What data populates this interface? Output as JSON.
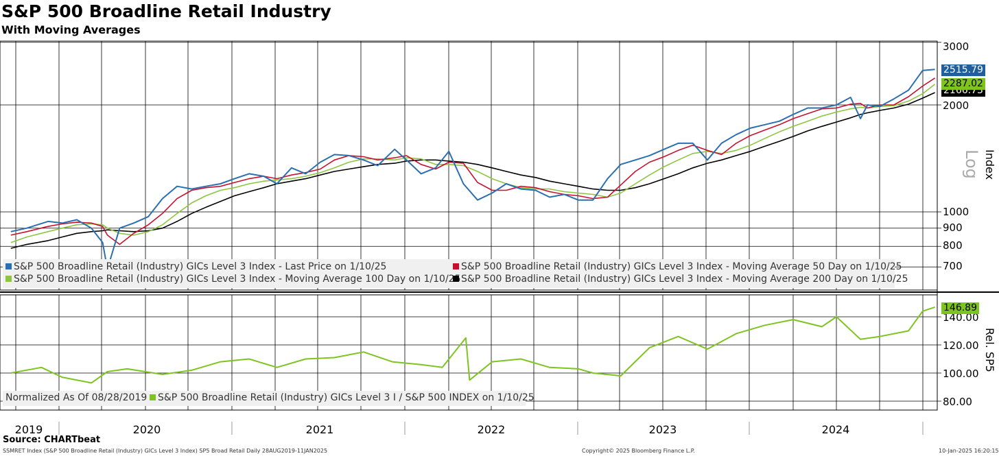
{
  "header": {
    "title": "S&P 500 Broadline Retail Industry",
    "subtitle": "With Moving Averages"
  },
  "chart_data": [
    {
      "type": "line",
      "y_scale": "log",
      "ylabel": "Index",
      "scale_label": "Log",
      "ylim": [
        630,
        3000
      ],
      "y_ticks": [
        700,
        800,
        900,
        1000,
        2000,
        3000
      ],
      "x_tick_labels": [
        "2019",
        "2020",
        "2021",
        "2022",
        "2023",
        "2024"
      ],
      "x": [
        "2019-08-28",
        "2019-10-01",
        "2019-11-15",
        "2019-12-15",
        "2020-01-15",
        "2020-02-15",
        "2020-03-10",
        "2020-03-20",
        "2020-04-15",
        "2020-05-15",
        "2020-06-15",
        "2020-07-15",
        "2020-08-15",
        "2020-09-15",
        "2020-10-15",
        "2020-11-15",
        "2020-12-15",
        "2021-01-15",
        "2021-02-15",
        "2021-03-15",
        "2021-04-15",
        "2021-05-15",
        "2021-06-15",
        "2021-07-15",
        "2021-08-15",
        "2021-09-15",
        "2021-10-15",
        "2021-11-20",
        "2021-12-15",
        "2022-01-15",
        "2022-02-15",
        "2022-03-15",
        "2022-04-15",
        "2022-05-15",
        "2022-06-15",
        "2022-07-15",
        "2022-08-15",
        "2022-09-15",
        "2022-10-15",
        "2022-11-15",
        "2022-12-15",
        "2023-01-15",
        "2023-02-15",
        "2023-03-15",
        "2023-04-15",
        "2023-05-15",
        "2023-06-15",
        "2023-07-15",
        "2023-08-15",
        "2023-09-15",
        "2023-10-15",
        "2023-11-15",
        "2023-12-15",
        "2024-01-15",
        "2024-02-15",
        "2024-03-15",
        "2024-04-15",
        "2024-05-15",
        "2024-06-15",
        "2024-07-15",
        "2024-08-05",
        "2024-08-20",
        "2024-09-15",
        "2024-10-15",
        "2024-11-15",
        "2024-12-15",
        "2025-01-10"
      ],
      "series": [
        {
          "name": "S&P 500 Broadline Retail (Industry) GICs Level 3 Index - Last Price on 1/10/25",
          "color": "#2a6fb0",
          "values": [
            880,
            900,
            940,
            930,
            950,
            900,
            820,
            690,
            900,
            930,
            970,
            1090,
            1180,
            1160,
            1180,
            1200,
            1240,
            1280,
            1260,
            1200,
            1330,
            1280,
            1380,
            1450,
            1440,
            1400,
            1350,
            1500,
            1400,
            1280,
            1330,
            1480,
            1200,
            1080,
            1130,
            1200,
            1160,
            1150,
            1100,
            1120,
            1080,
            1080,
            1240,
            1360,
            1400,
            1440,
            1500,
            1560,
            1560,
            1400,
            1560,
            1650,
            1720,
            1760,
            1800,
            1880,
            1960,
            1960,
            2000,
            2100,
            1830,
            2000,
            1980,
            2080,
            2200,
            2500,
            2516
          ]
        },
        {
          "name": "S&P 500 Broadline Retail (Industry) GICs Level 3 Index - Moving Average 50 Day on 1/10/25",
          "color": "#c8102e",
          "values": [
            860,
            880,
            910,
            925,
            935,
            930,
            910,
            860,
            810,
            870,
            920,
            990,
            1090,
            1150,
            1170,
            1180,
            1210,
            1240,
            1260,
            1240,
            1270,
            1290,
            1320,
            1400,
            1440,
            1430,
            1400,
            1420,
            1440,
            1360,
            1320,
            1380,
            1370,
            1210,
            1150,
            1150,
            1180,
            1170,
            1140,
            1120,
            1110,
            1090,
            1100,
            1190,
            1300,
            1380,
            1430,
            1490,
            1540,
            1490,
            1450,
            1560,
            1640,
            1700,
            1760,
            1830,
            1890,
            1950,
            1960,
            2010,
            2020,
            1960,
            2000,
            2000,
            2110,
            2260,
            2380
          ]
        },
        {
          "name": "S&P 500 Broadline Retail (Industry) GICs Level 3 Index - Moving Average 100 Day on 1/10/25",
          "color": "#8cc63f",
          "values": [
            820,
            850,
            880,
            900,
            920,
            925,
            920,
            900,
            870,
            860,
            880,
            920,
            990,
            1060,
            1110,
            1150,
            1170,
            1200,
            1220,
            1230,
            1240,
            1260,
            1290,
            1330,
            1380,
            1410,
            1410,
            1400,
            1420,
            1410,
            1360,
            1360,
            1350,
            1300,
            1240,
            1200,
            1170,
            1160,
            1160,
            1140,
            1130,
            1120,
            1100,
            1130,
            1200,
            1270,
            1340,
            1400,
            1460,
            1480,
            1460,
            1490,
            1540,
            1610,
            1680,
            1740,
            1800,
            1860,
            1910,
            1950,
            1970,
            1960,
            1980,
            1990,
            2050,
            2150,
            2287
          ]
        },
        {
          "name": "S&P 500 Broadline Retail (Industry) GICs Level 3 Index - Moving Average 200 Day on 1/10/25",
          "color": "#000000",
          "values": [
            790,
            810,
            830,
            850,
            870,
            880,
            885,
            890,
            885,
            880,
            885,
            900,
            940,
            990,
            1030,
            1070,
            1110,
            1140,
            1170,
            1200,
            1220,
            1240,
            1270,
            1300,
            1320,
            1340,
            1360,
            1370,
            1390,
            1400,
            1400,
            1390,
            1380,
            1360,
            1330,
            1300,
            1270,
            1250,
            1220,
            1200,
            1180,
            1160,
            1150,
            1150,
            1170,
            1200,
            1240,
            1280,
            1330,
            1370,
            1400,
            1440,
            1480,
            1530,
            1580,
            1630,
            1690,
            1740,
            1790,
            1840,
            1880,
            1900,
            1930,
            1960,
            2010,
            2090,
            2167
          ]
        }
      ]
    },
    {
      "type": "line",
      "ylabel": "Rel. SP5",
      "ylim": [
        74,
        150
      ],
      "y_ticks": [
        80,
        100,
        120,
        140
      ],
      "y_tick_labels": [
        "80.00",
        "100.00",
        "120.00",
        "140.00"
      ],
      "x": [
        "2019-08-28",
        "2019-11-01",
        "2019-12-15",
        "2020-02-15",
        "2020-03-20",
        "2020-05-01",
        "2020-07-15",
        "2020-09-15",
        "2020-11-15",
        "2021-01-15",
        "2021-03-15",
        "2021-05-15",
        "2021-07-15",
        "2021-09-15",
        "2021-11-15",
        "2022-01-15",
        "2022-03-01",
        "2022-04-20",
        "2022-04-28",
        "2022-06-15",
        "2022-08-15",
        "2022-10-15",
        "2022-12-15",
        "2023-01-15",
        "2023-03-15",
        "2023-05-15",
        "2023-07-15",
        "2023-09-15",
        "2023-11-15",
        "2024-01-15",
        "2024-03-15",
        "2024-05-15",
        "2024-06-15",
        "2024-08-05",
        "2024-09-15",
        "2024-11-15",
        "2024-12-15",
        "2025-01-10"
      ],
      "series": [
        {
          "name": "S&P 500 Broadline Retail (Industry) GICs Level 3 I / S&P 500 INDEX on 1/10/25",
          "color": "#7dc41f",
          "values": [
            100,
            104,
            97,
            93,
            101,
            103,
            99,
            102,
            108,
            110,
            104,
            110,
            111,
            115,
            108,
            106,
            104,
            125,
            95,
            108,
            110,
            104,
            103,
            100,
            98,
            118,
            126,
            117,
            128,
            134,
            138,
            133,
            140,
            124,
            126,
            130,
            144,
            146.89
          ]
        }
      ]
    }
  ],
  "legends": {
    "top": [
      {
        "label": "S&P 500 Broadline Retail (Industry) GICs Level 3 Index - Last Price on 1/10/25",
        "color": "#2a6fb0"
      },
      {
        "label": "S&P 500 Broadline Retail (Industry) GICs Level 3 Index - Moving Average 50 Day on 1/10/25",
        "color": "#c8102e"
      },
      {
        "label": "S&P 500 Broadline Retail (Industry) GICs Level 3 Index - Moving Average 100 Day on 1/10/25",
        "color": "#8cc63f"
      },
      {
        "label": "S&P 500 Broadline Retail (Industry) GICs Level 3 Index - Moving Average 200 Day on 1/10/25",
        "color": "#000000"
      }
    ],
    "bottom": {
      "note": "Normalized As Of 08/28/2019",
      "label": "S&P 500 Broadline Retail (Industry) GICs Level 3 I / S&P 500 INDEX on 1/10/25",
      "color": "#7dc41f"
    }
  },
  "value_tags": {
    "last_price": "2515.79",
    "ma100": "2287.02",
    "ma200": "2166.73",
    "relative": "146.89"
  },
  "footer": {
    "source": "Source: CHARTbeat",
    "ticker_line": "SSMRET Index (S&P 500 Broadline Retail (Industry) GICs Level 3 Index) SP5 Broad Retail  Daily 28AUG2019-11JAN2025",
    "copyright": "Copyright© 2025 Bloomberg Finance L.P.",
    "timestamp": "10-Jan-2025 16:20:15"
  }
}
